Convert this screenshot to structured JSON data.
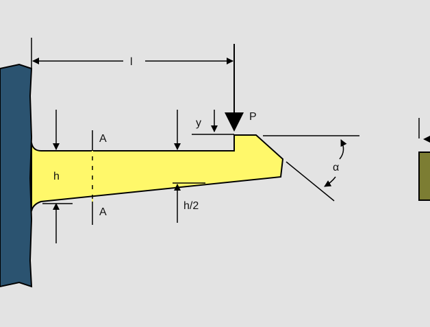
{
  "diagram": {
    "labels": {
      "length": "l",
      "load": "P",
      "deflection": "y",
      "thickness": "h",
      "half_thickness": "h/2",
      "section_top": "A",
      "section_bottom": "A",
      "angle": "α"
    },
    "colors": {
      "background": "#e3e3e3",
      "wall": "#2b5370",
      "beam": "#fff86a",
      "line": "#000000",
      "block": "#7c7d33"
    }
  }
}
